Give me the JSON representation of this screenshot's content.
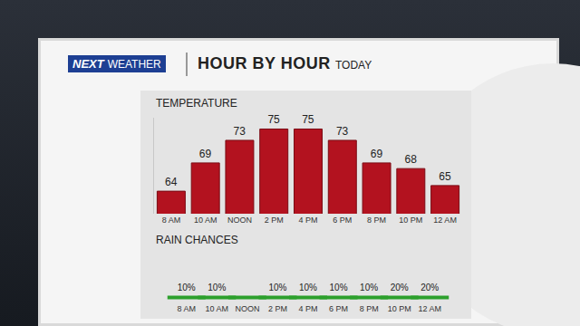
{
  "header": {
    "logo": "NEXT",
    "logo_sub": "WEATHER",
    "title": "HOUR BY HOUR",
    "subtitle": "TODAY"
  },
  "chart_data": [
    {
      "type": "bar",
      "title": "TEMPERATURE",
      "categories": [
        "8 AM",
        "10 AM",
        "NOON",
        "2 PM",
        "4 PM",
        "6 PM",
        "8 PM",
        "10 PM",
        "12 AM"
      ],
      "values": [
        64,
        69,
        73,
        75,
        75,
        73,
        69,
        68,
        65
      ],
      "color": "#b3121f",
      "ylim": [
        60,
        77
      ],
      "grid": false,
      "data_labels": true,
      "tick_labels": "x"
    },
    {
      "type": "text",
      "title": "RAIN CHANCES",
      "categories": [
        "8 AM",
        "10 AM",
        "NOON",
        "2 PM",
        "4 PM",
        "6 PM",
        "8 PM",
        "10 PM",
        "12 AM"
      ],
      "values": [
        10,
        10,
        null,
        10,
        10,
        10,
        10,
        20,
        20
      ],
      "value_labels": [
        "10%",
        "10%",
        null,
        "10%",
        "10%",
        "10%",
        "10%",
        "20%",
        "20%"
      ],
      "colors": [
        "#3a9f42",
        "#3a9f42",
        null,
        "#3a9f42",
        "#3a9f42",
        "#3a9f42",
        "#3a9f42",
        "#5fd13a",
        "#5fd13a"
      ],
      "data_labels": true,
      "tick_labels": "x"
    }
  ]
}
